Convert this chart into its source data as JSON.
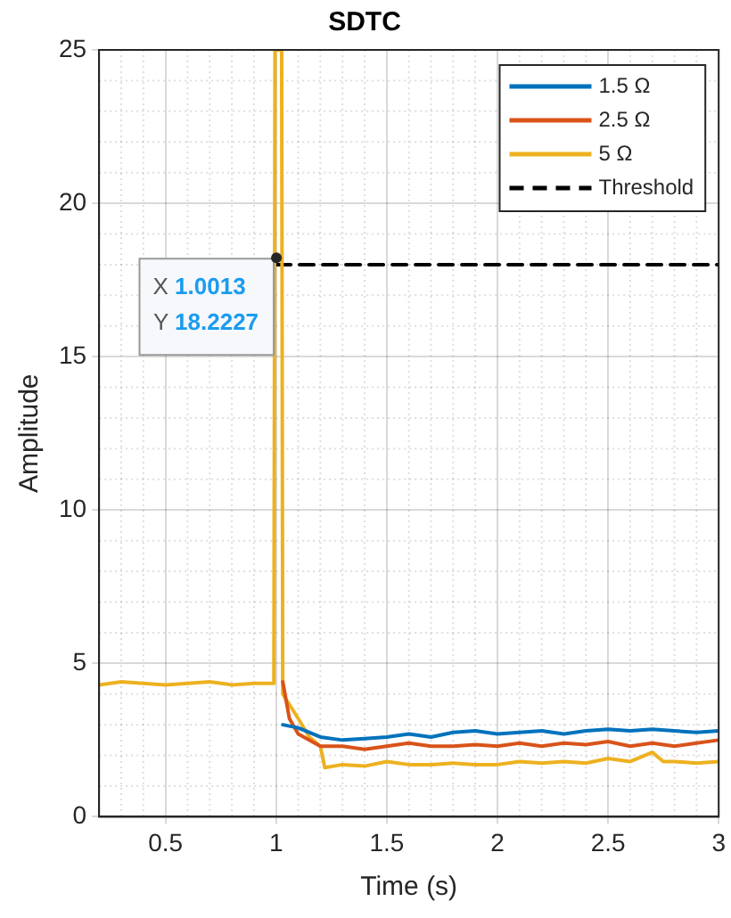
{
  "chart_data": {
    "type": "line",
    "title": "SDTC",
    "xlabel": "Time (s)",
    "ylabel": "Amplitude",
    "xlim": [
      0.2,
      3
    ],
    "xticks": [
      0.5,
      1,
      1.5,
      2,
      2.5,
      3
    ],
    "ylim": [
      0,
      25
    ],
    "yticks": [
      0,
      5,
      10,
      15,
      20,
      25
    ],
    "grid": true,
    "legend": "top right",
    "line_style": "solid",
    "marker": "none",
    "series": [
      {
        "name": "1.5 Ω",
        "color": "#0072bd",
        "x": [
          1.03,
          1.1,
          1.2,
          1.3,
          1.4,
          1.5,
          1.6,
          1.7,
          1.8,
          1.9,
          2,
          2.1,
          2.2,
          2.3,
          2.4,
          2.5,
          2.6,
          2.7,
          2.8,
          2.9,
          3
        ],
        "values": [
          3.0,
          2.9,
          2.6,
          2.5,
          2.55,
          2.6,
          2.7,
          2.6,
          2.75,
          2.8,
          2.7,
          2.75,
          2.8,
          2.7,
          2.8,
          2.85,
          2.8,
          2.85,
          2.8,
          2.75,
          2.8
        ]
      },
      {
        "name": "2.5 Ω",
        "color": "#d95319",
        "x": [
          1.03,
          1.06,
          1.1,
          1.2,
          1.3,
          1.4,
          1.5,
          1.6,
          1.7,
          1.8,
          1.9,
          2,
          2.1,
          2.2,
          2.3,
          2.4,
          2.5,
          2.6,
          2.7,
          2.8,
          2.9,
          3
        ],
        "values": [
          4.4,
          3.2,
          2.7,
          2.3,
          2.3,
          2.2,
          2.3,
          2.4,
          2.3,
          2.3,
          2.35,
          2.3,
          2.4,
          2.3,
          2.4,
          2.35,
          2.45,
          2.3,
          2.4,
          2.3,
          2.4,
          2.5
        ]
      },
      {
        "name": "5 Ω",
        "color": "#edb120",
        "x": [
          0.2,
          0.3,
          0.4,
          0.5,
          0.6,
          0.7,
          0.8,
          0.9,
          0.99,
          0.995,
          1.025,
          1.03,
          1.1,
          1.15,
          1.2,
          1.22,
          1.3,
          1.4,
          1.5,
          1.6,
          1.7,
          1.8,
          1.9,
          2,
          2.1,
          2.2,
          2.3,
          2.4,
          2.5,
          2.6,
          2.7,
          2.75,
          2.8,
          2.9,
          3
        ],
        "values": [
          4.3,
          4.4,
          4.35,
          4.3,
          4.35,
          4.4,
          4.3,
          4.35,
          4.35,
          25,
          25,
          4.0,
          3.2,
          2.6,
          2.3,
          1.6,
          1.7,
          1.65,
          1.8,
          1.7,
          1.7,
          1.75,
          1.7,
          1.7,
          1.8,
          1.75,
          1.8,
          1.75,
          1.9,
          1.8,
          2.1,
          1.8,
          1.8,
          1.75,
          1.8
        ]
      },
      {
        "name": "Threshold",
        "color": "#000000",
        "line_style": "dashed",
        "x": [
          1.0013,
          3
        ],
        "values": [
          18,
          18
        ]
      }
    ],
    "annotations": [
      {
        "text": "X 1.0013\nY 18.2227",
        "x": 1.0013,
        "y": 18.2227
      }
    ]
  }
}
